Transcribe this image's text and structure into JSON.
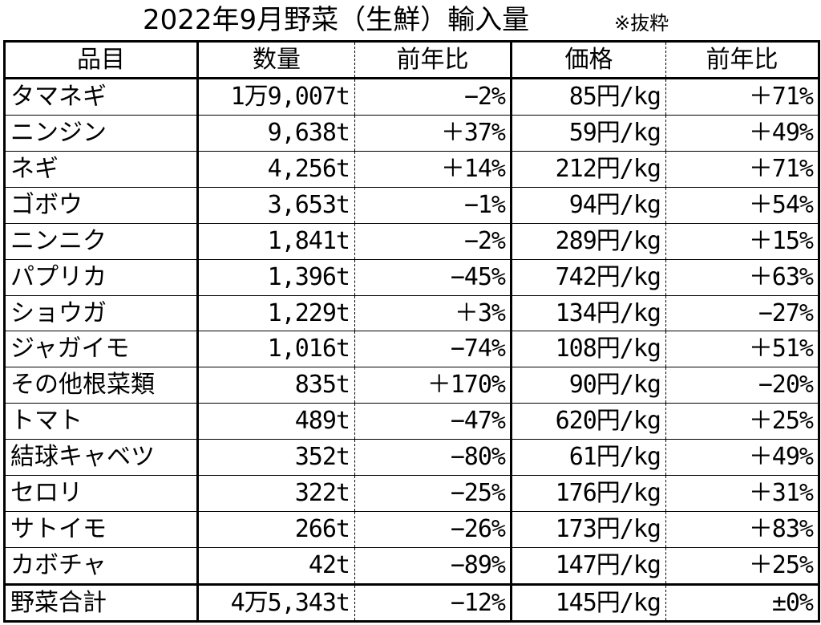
{
  "title": "2022年9月野菜（生鮮）輸入量",
  "note": "※抜粋",
  "headers": {
    "item": "品目",
    "volume": "数量",
    "volume_yoy": "前年比",
    "price": "価格",
    "price_yoy": "前年比"
  },
  "rows": [
    {
      "item": "タマネギ",
      "volume": "1万9,007t",
      "volume_yoy": "−2%",
      "price": "85円/kg",
      "price_yoy": "＋71%"
    },
    {
      "item": "ニンジン",
      "volume": "9,638t",
      "volume_yoy": "＋37%",
      "price": "59円/kg",
      "price_yoy": "＋49%"
    },
    {
      "item": "ネギ",
      "volume": "4,256t",
      "volume_yoy": "＋14%",
      "price": "212円/kg",
      "price_yoy": "＋71%"
    },
    {
      "item": "ゴボウ",
      "volume": "3,653t",
      "volume_yoy": "−1%",
      "price": "94円/kg",
      "price_yoy": "＋54%"
    },
    {
      "item": "ニンニク",
      "volume": "1,841t",
      "volume_yoy": "−2%",
      "price": "289円/kg",
      "price_yoy": "＋15%"
    },
    {
      "item": "パプリカ",
      "volume": "1,396t",
      "volume_yoy": "−45%",
      "price": "742円/kg",
      "price_yoy": "＋63%"
    },
    {
      "item": "ショウガ",
      "volume": "1,229t",
      "volume_yoy": "＋3%",
      "price": "134円/kg",
      "price_yoy": "−27%"
    },
    {
      "item": "ジャガイモ",
      "volume": "1,016t",
      "volume_yoy": "−74%",
      "price": "108円/kg",
      "price_yoy": "＋51%"
    },
    {
      "item": "その他根菜類",
      "volume": "835t",
      "volume_yoy": "＋170%",
      "price": "90円/kg",
      "price_yoy": "−20%"
    },
    {
      "item": "トマト",
      "volume": "489t",
      "volume_yoy": "−47%",
      "price": "620円/kg",
      "price_yoy": "＋25%"
    },
    {
      "item": "結球キャベツ",
      "volume": "352t",
      "volume_yoy": "−80%",
      "price": "61円/kg",
      "price_yoy": "＋49%"
    },
    {
      "item": "セロリ",
      "volume": "322t",
      "volume_yoy": "−25%",
      "price": "176円/kg",
      "price_yoy": "＋31%"
    },
    {
      "item": "サトイモ",
      "volume": "266t",
      "volume_yoy": "−26%",
      "price": "173円/kg",
      "price_yoy": "＋83%"
    },
    {
      "item": "カボチャ",
      "volume": "42t",
      "volume_yoy": "−89%",
      "price": "147円/kg",
      "price_yoy": "＋25%"
    }
  ],
  "total": {
    "item": "野菜合計",
    "volume": "4万5,343t",
    "volume_yoy": "−12%",
    "price": "145円/kg",
    "price_yoy": "±0%"
  }
}
